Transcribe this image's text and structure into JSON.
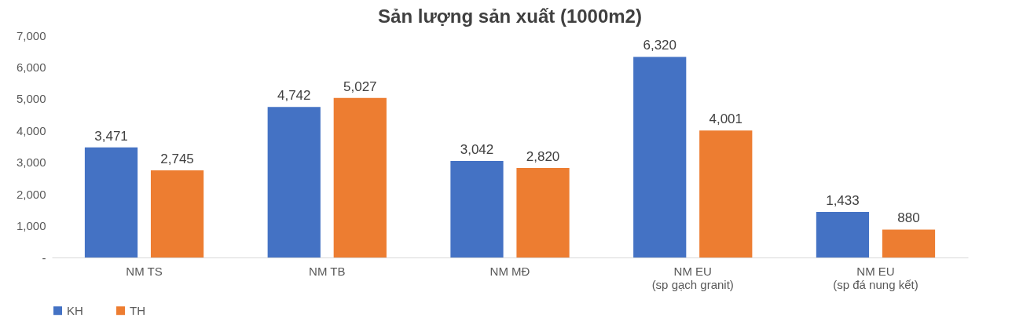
{
  "chart_data": {
    "type": "bar",
    "title": "Sản lượng sản xuất (1000m2)",
    "categories": [
      "NM TS",
      "NM TB",
      "NM MĐ",
      "NM EU\n(sp gạch granit)",
      "NM EU\n(sp đá nung kết)"
    ],
    "series": [
      {
        "name": "KH",
        "color": "#4472c4",
        "values": [
          3471,
          4742,
          3042,
          6320,
          1433
        ],
        "value_labels": [
          "3,471",
          "4,742",
          "3,042",
          "6,320",
          "1,433"
        ]
      },
      {
        "name": "TH",
        "color": "#ed7d31",
        "values": [
          2745,
          5027,
          2820,
          4001,
          880
        ],
        "value_labels": [
          "2,745",
          "5,027",
          "2,820",
          "4,001",
          "880"
        ]
      }
    ],
    "ylim": [
      0,
      7000
    ],
    "yticks": [
      {
        "value": 0,
        "label": "-"
      },
      {
        "value": 1000,
        "label": "1,000"
      },
      {
        "value": 2000,
        "label": "2,000"
      },
      {
        "value": 3000,
        "label": "3,000"
      },
      {
        "value": 4000,
        "label": "4,000"
      },
      {
        "value": 5000,
        "label": "5,000"
      },
      {
        "value": 6000,
        "label": "6,000"
      },
      {
        "value": 7000,
        "label": "7,000"
      }
    ],
    "grid": false,
    "legend": "bottom"
  }
}
